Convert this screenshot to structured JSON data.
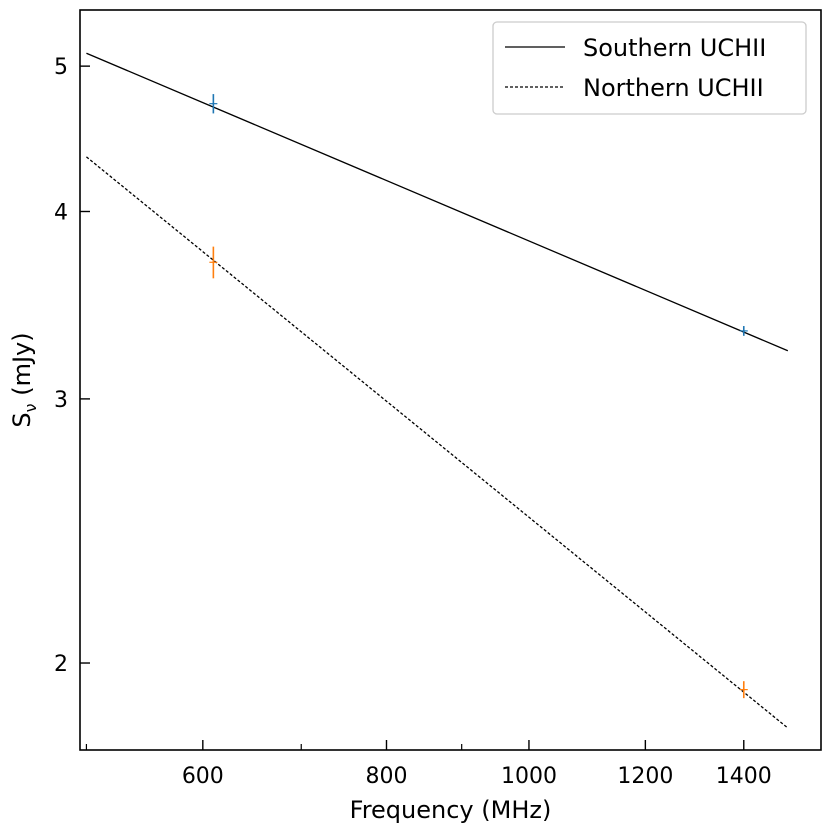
{
  "chart_data": {
    "type": "line",
    "title": "",
    "xlabel": "Frequency (MHz)",
    "ylabel_main": "S",
    "ylabel_sub": "ν",
    "ylabel_unit": " (mJy)",
    "x_scale": "log",
    "y_scale": "log",
    "xlim": [
      495,
      1580
    ],
    "ylim": [
      1.75,
      5.45
    ],
    "x_ticks_major": [
      {
        "value": 600,
        "label": "600"
      },
      {
        "value": 800,
        "label": "800"
      },
      {
        "value": 1000,
        "label": "1000"
      },
      {
        "value": 1200,
        "label": "1200"
      },
      {
        "value": 1400,
        "label": "1400"
      }
    ],
    "x_ticks_minor": [
      500,
      700,
      900
    ],
    "y_ticks_major": [
      {
        "value": 2,
        "label": "2"
      },
      {
        "value": 3,
        "label": "3"
      },
      {
        "value": 4,
        "label": "4"
      },
      {
        "value": 5,
        "label": "5"
      }
    ],
    "grid": false,
    "legend_position": "top-right",
    "series": [
      {
        "name": "Southern UCHII",
        "line_style": "solid",
        "line_color": "#000000",
        "fit_x_range": [
          500,
          1500
        ],
        "fit_points": [
          [
            500,
            5.1
          ],
          [
            1500,
            3.23
          ]
        ],
        "point_color": "#1f77b4",
        "points": [
          {
            "x": 610,
            "y": 4.72,
            "err": 0.07
          },
          {
            "x": 1400,
            "y": 3.33,
            "err": 0.025
          }
        ]
      },
      {
        "name": "Northern UCHII",
        "line_style": "dashed",
        "line_color": "#000000",
        "fit_x_range": [
          500,
          1500
        ],
        "fit_points": [
          [
            500,
            4.35
          ],
          [
            1500,
            1.81
          ]
        ],
        "point_color": "#ff7f0e",
        "points": [
          {
            "x": 610,
            "y": 3.7,
            "err": 0.09
          },
          {
            "x": 1400,
            "y": 1.92,
            "err": 0.025
          }
        ]
      }
    ]
  }
}
